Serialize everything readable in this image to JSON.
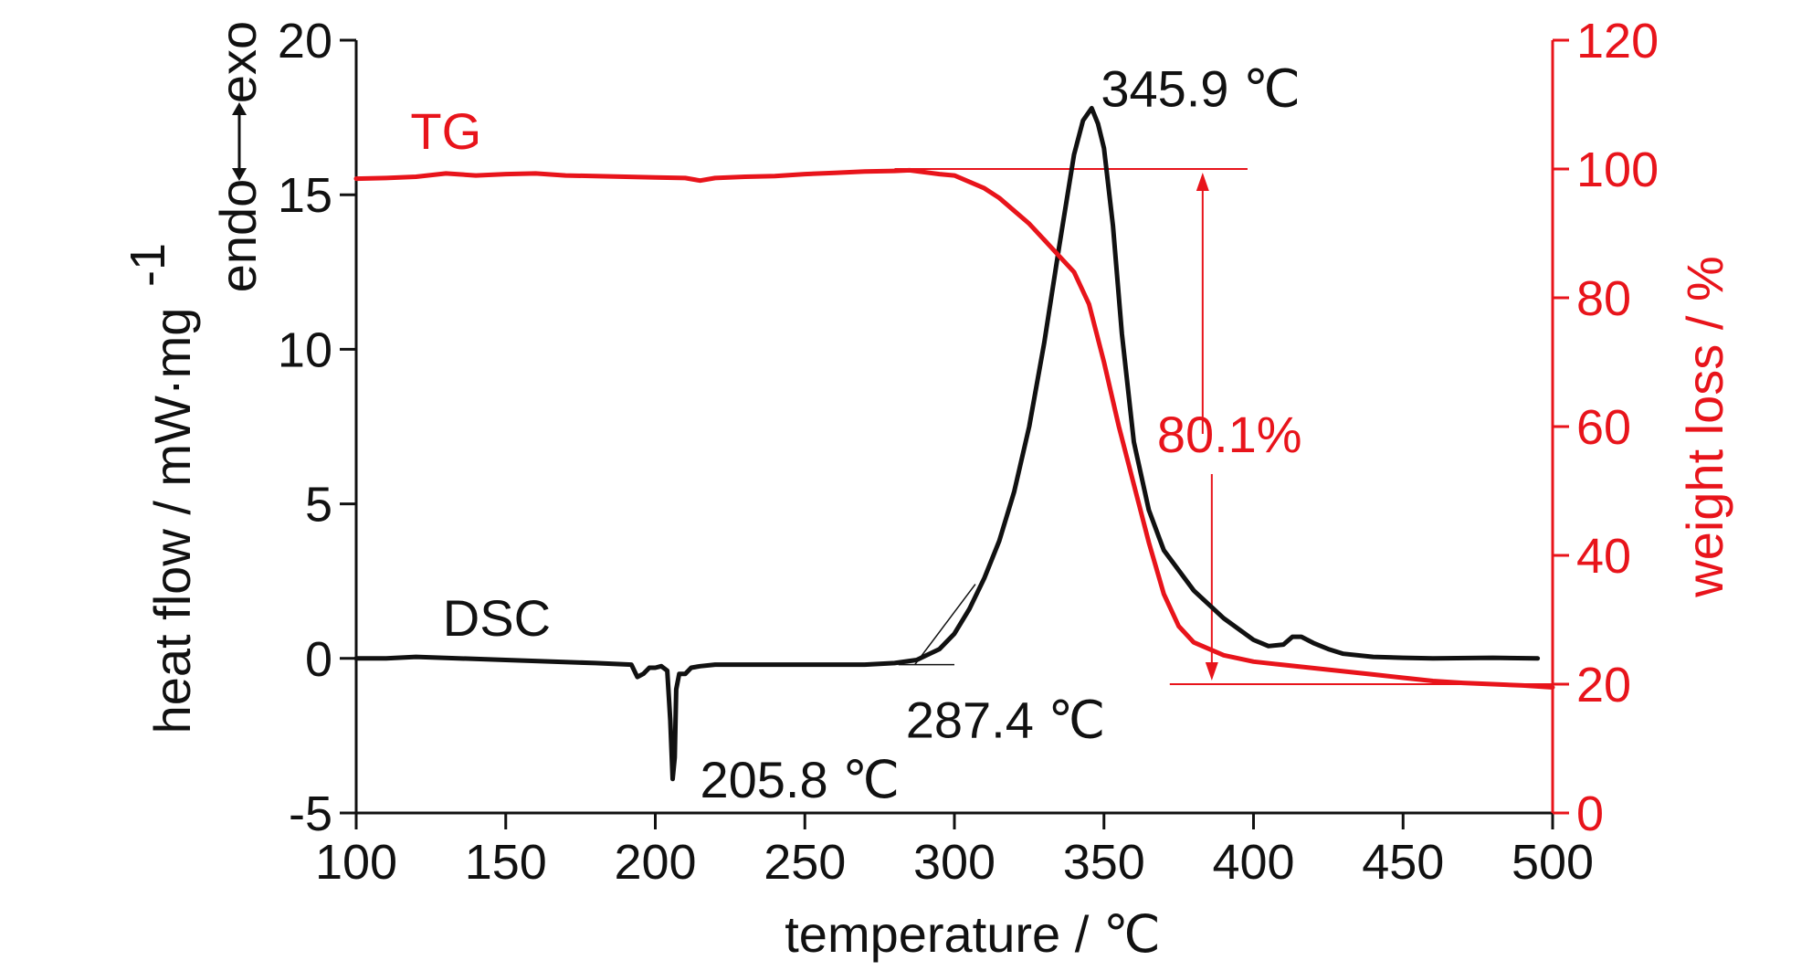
{
  "chart_data": {
    "type": "line",
    "xlabel": "temperature / ℃",
    "ylabel_left": "heat flow / mW·mg",
    "ylabel_left_sup": "-1",
    "ylabel_right": "weight loss / %",
    "exo_label": "exo",
    "endo_label": "endo",
    "xlim": [
      100,
      500
    ],
    "ylim_left": [
      -5,
      20
    ],
    "ylim_right": [
      0,
      120
    ],
    "x_ticks": [
      100,
      150,
      200,
      250,
      300,
      350,
      400,
      450,
      500
    ],
    "x_tick_labels": [
      "100",
      "150",
      "200",
      "250",
      "300",
      "350",
      "400",
      "450",
      "500"
    ],
    "y_left_ticks": [
      -5,
      0,
      5,
      10,
      15,
      20
    ],
    "y_left_tick_labels": [
      "-5",
      "0",
      "5",
      "10",
      "15",
      "20"
    ],
    "y_right_ticks": [
      0,
      20,
      40,
      60,
      80,
      100,
      120
    ],
    "y_right_tick_labels": [
      "0",
      "20",
      "40",
      "60",
      "80",
      "100",
      "120"
    ],
    "colors": {
      "dsc": "#111111",
      "tg": "#e8141b"
    },
    "series": [
      {
        "name": "DSC",
        "axis": "left",
        "x": [
          100,
          110,
          120,
          150,
          180,
          192,
          194,
          196,
          198,
          200,
          202,
          204,
          205,
          205.8,
          206.5,
          207,
          208,
          210,
          212,
          215,
          220,
          250,
          270,
          280,
          287.4,
          295,
          300,
          305,
          310,
          315,
          320,
          325,
          330,
          335,
          340,
          343,
          345.9,
          348,
          350,
          353,
          356,
          360,
          365,
          370,
          380,
          390,
          400,
          405,
          410,
          413,
          416,
          420,
          425,
          430,
          440,
          450,
          460,
          480,
          495
        ],
        "y": [
          0.0,
          0.0,
          0.05,
          -0.05,
          -0.15,
          -0.2,
          -0.6,
          -0.5,
          -0.3,
          -0.3,
          -0.25,
          -0.4,
          -2.0,
          -3.9,
          -3.2,
          -1.0,
          -0.5,
          -0.5,
          -0.3,
          -0.25,
          -0.2,
          -0.2,
          -0.2,
          -0.15,
          -0.05,
          0.3,
          0.8,
          1.6,
          2.6,
          3.8,
          5.4,
          7.5,
          10.2,
          13.3,
          16.3,
          17.4,
          17.8,
          17.3,
          16.5,
          14.0,
          10.5,
          7.0,
          4.8,
          3.5,
          2.2,
          1.3,
          0.6,
          0.4,
          0.45,
          0.7,
          0.7,
          0.5,
          0.3,
          0.15,
          0.05,
          0.02,
          0.0,
          0.02,
          0.0
        ]
      },
      {
        "name": "TG",
        "axis": "right",
        "x": [
          100,
          110,
          120,
          130,
          140,
          150,
          160,
          170,
          180,
          190,
          200,
          210,
          215,
          220,
          230,
          240,
          250,
          260,
          270,
          280,
          285,
          290,
          295,
          300,
          305,
          310,
          315,
          320,
          325,
          330,
          335,
          340,
          345,
          350,
          355,
          360,
          365,
          370,
          375,
          380,
          390,
          400,
          410,
          420,
          430,
          440,
          450,
          460,
          470,
          480,
          490,
          500
        ],
        "y": [
          98.5,
          98.6,
          98.8,
          99.3,
          99.0,
          99.2,
          99.3,
          99.0,
          98.9,
          98.8,
          98.7,
          98.6,
          98.2,
          98.6,
          98.8,
          98.9,
          99.2,
          99.4,
          99.6,
          99.7,
          99.8,
          99.5,
          99.2,
          99.0,
          98.0,
          97.0,
          95.5,
          93.5,
          91.5,
          89.0,
          86.5,
          84.0,
          79.0,
          70.0,
          60.0,
          51.0,
          42.0,
          34.0,
          29.0,
          26.5,
          24.5,
          23.5,
          23.0,
          22.5,
          22.0,
          21.5,
          21.0,
          20.5,
          20.2,
          20.0,
          19.8,
          19.5
        ]
      }
    ],
    "annotations": {
      "peak": {
        "label": "345.9 ℃",
        "x": 345.9,
        "y": 17.8
      },
      "onset": {
        "label": "287.4 ℃",
        "x": 287.4,
        "y": -0.2
      },
      "endo_peak": {
        "label": "205.8 ℃",
        "x": 205.8,
        "y": -3.9
      },
      "weight_loss": {
        "label": "80.1%",
        "x": 383,
        "y_top": 100,
        "y_bottom": 20
      },
      "tg_label": "TG",
      "dsc_label": "DSC"
    }
  }
}
